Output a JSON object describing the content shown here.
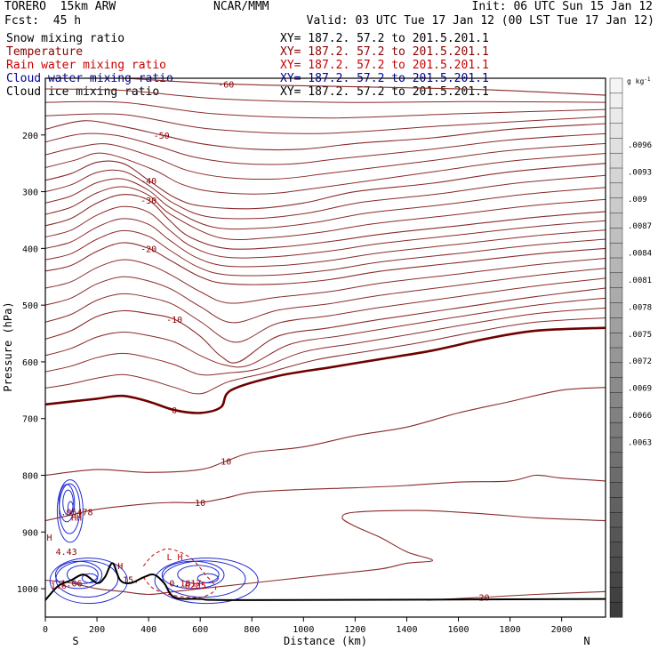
{
  "header": {
    "model": "TORERO  15km ARW",
    "forecast": "Fcst:  45 h",
    "center": "NCAR/MMM",
    "init": "Init: 06 UTC Sun 15 Jan 12",
    "valid": "Valid: 03 UTC Tue 17 Jan 12 (00 LST Tue 17 Jan 12)",
    "fields": [
      {
        "name": "Snow mixing ratio",
        "color": "#000000",
        "xy": "XY= 187.2. 57.2 to 201.5.201.1"
      },
      {
        "name": "Temperature",
        "color": "#8b0000",
        "xy": "XY= 187.2. 57.2 to 201.5.201.1"
      },
      {
        "name": "Rain water mixing ratio",
        "color": "#cc0000",
        "xy": "XY= 187.2. 57.2 to 201.5.201.1"
      },
      {
        "name": "Cloud water mixing ratio",
        "color": "#00009c",
        "xy": "XY= 187.2. 57.2 to 201.5.201.1"
      },
      {
        "name": "Cloud ice mixing ratio",
        "color": "#000000",
        "xy": "XY= 187.2. 57.2 to 201.5.201.1"
      }
    ]
  },
  "chart_data": {
    "type": "line",
    "title": "",
    "xlabel": "Distance (km)",
    "ylabel": "Pressure (hPa)",
    "xlim": [
      0,
      2170
    ],
    "ylim": [
      1050,
      100
    ],
    "x_ticks": [
      0,
      200,
      400,
      600,
      800,
      1000,
      1200,
      1400,
      1600,
      1800,
      2000
    ],
    "y_ticks": [
      200,
      300,
      400,
      500,
      600,
      700,
      800,
      900,
      1000
    ],
    "direction_labels": {
      "left": "S",
      "right": "N"
    },
    "colorbar": {
      "unit": "g kg",
      "unit_exp": "-1",
      "ticks": [
        ".0096",
        ".0093",
        ".009",
        ".0087",
        ".0084",
        ".0081",
        ".0078",
        ".0075",
        ".0072",
        ".0069",
        ".0066",
        ".0063"
      ]
    },
    "temperature_contours": [
      {
        "level": -60,
        "points": [
          [
            0,
            95
          ],
          [
            300,
            100
          ],
          [
            700,
            110
          ],
          [
            1200,
            115
          ],
          [
            1700,
            120
          ],
          [
            2170,
            130
          ]
        ]
      },
      {
        "level": -50,
        "points": [
          [
            0,
            190
          ],
          [
            150,
            175
          ],
          [
            300,
            185
          ],
          [
            450,
            200
          ],
          [
            600,
            215
          ],
          [
            800,
            225
          ],
          [
            1000,
            225
          ],
          [
            1200,
            215
          ],
          [
            1500,
            205
          ],
          [
            1800,
            190
          ],
          [
            2170,
            180
          ]
        ]
      },
      {
        "level": -40,
        "points": [
          [
            0,
            280
          ],
          [
            100,
            268
          ],
          [
            200,
            248
          ],
          [
            300,
            250
          ],
          [
            400,
            280
          ],
          [
            500,
            310
          ],
          [
            600,
            325
          ],
          [
            800,
            330
          ],
          [
            1000,
            320
          ],
          [
            1200,
            300
          ],
          [
            1500,
            285
          ],
          [
            1800,
            265
          ],
          [
            2170,
            250
          ]
        ]
      },
      {
        "level": -30,
        "points": [
          [
            0,
            360
          ],
          [
            100,
            347
          ],
          [
            200,
            320
          ],
          [
            300,
            305
          ],
          [
            400,
            315
          ],
          [
            480,
            350
          ],
          [
            560,
            380
          ],
          [
            700,
            400
          ],
          [
            900,
            398
          ],
          [
            1100,
            388
          ],
          [
            1300,
            375
          ],
          [
            1600,
            360
          ],
          [
            1900,
            345
          ],
          [
            2170,
            335
          ]
        ]
      },
      {
        "level": -20,
        "points": [
          [
            0,
            440
          ],
          [
            100,
            430
          ],
          [
            200,
            405
          ],
          [
            300,
            390
          ],
          [
            400,
            400
          ],
          [
            480,
            420
          ],
          [
            600,
            450
          ],
          [
            700,
            462
          ],
          [
            900,
            463
          ],
          [
            1100,
            455
          ],
          [
            1300,
            440
          ],
          [
            1600,
            425
          ],
          [
            1900,
            410
          ],
          [
            2170,
            400
          ]
        ]
      },
      {
        "level": -10,
        "points": [
          [
            0,
            560
          ],
          [
            100,
            545
          ],
          [
            200,
            520
          ],
          [
            300,
            510
          ],
          [
            400,
            515
          ],
          [
            500,
            525
          ],
          [
            600,
            555
          ],
          [
            680,
            590
          ],
          [
            750,
            600
          ],
          [
            900,
            555
          ],
          [
            1100,
            540
          ],
          [
            1300,
            525
          ],
          [
            1600,
            505
          ],
          [
            1900,
            485
          ],
          [
            2170,
            470
          ]
        ]
      },
      {
        "level": 0,
        "points": [
          [
            0,
            675
          ],
          [
            100,
            670
          ],
          [
            200,
            665
          ],
          [
            300,
            660
          ],
          [
            400,
            670
          ],
          [
            500,
            685
          ],
          [
            600,
            690
          ],
          [
            680,
            680
          ],
          [
            720,
            650
          ],
          [
            900,
            625
          ],
          [
            1100,
            610
          ],
          [
            1300,
            595
          ],
          [
            1500,
            580
          ],
          [
            1700,
            560
          ],
          [
            1900,
            545
          ],
          [
            2170,
            540
          ]
        ]
      },
      {
        "level": 10,
        "points": [
          [
            0,
            800
          ],
          [
            200,
            790
          ],
          [
            400,
            795
          ],
          [
            600,
            790
          ],
          [
            700,
            775
          ],
          [
            800,
            760
          ],
          [
            1000,
            750
          ],
          [
            1200,
            730
          ],
          [
            1400,
            715
          ],
          [
            1600,
            690
          ],
          [
            1800,
            670
          ],
          [
            2000,
            650
          ],
          [
            2170,
            645
          ]
        ]
      },
      {
        "level": 10,
        "points": [
          [
            0,
            880
          ],
          [
            100,
            870
          ],
          [
            200,
            860
          ],
          [
            400,
            850
          ],
          [
            500,
            848
          ],
          [
            600,
            848
          ],
          [
            700,
            840
          ],
          [
            800,
            830
          ],
          [
            1000,
            825
          ],
          [
            1200,
            822
          ],
          [
            1400,
            818
          ],
          [
            1600,
            812
          ],
          [
            1800,
            810
          ],
          [
            1900,
            800
          ],
          [
            2000,
            805
          ],
          [
            2170,
            810
          ]
        ]
      },
      {
        "level": 20,
        "points": [
          [
            1480,
            1020
          ],
          [
            1700,
            1015
          ],
          [
            1900,
            1010
          ],
          [
            2170,
            1005
          ]
        ]
      }
    ],
    "warm_loop_points": [
      [
        2170,
        880
      ],
      [
        1900,
        875
      ],
      [
        1700,
        868
      ],
      [
        1450,
        862
      ],
      [
        1200,
        865
      ],
      [
        1150,
        875
      ],
      [
        1200,
        890
      ],
      [
        1300,
        910
      ],
      [
        1400,
        935
      ],
      [
        1500,
        950
      ],
      [
        1400,
        955
      ],
      [
        1300,
        965
      ],
      [
        1100,
        975
      ],
      [
        900,
        985
      ],
      [
        700,
        995
      ],
      [
        600,
        1000
      ],
      [
        500,
        1005
      ],
      [
        400,
        1010
      ],
      [
        300,
        1005
      ],
      [
        200,
        1000
      ],
      [
        100,
        990
      ],
      [
        0,
        985
      ]
    ],
    "cloud_blobs": [
      {
        "x": [
          40,
          140
        ],
        "p": [
          800,
          910
        ],
        "label": ".05478"
      },
      {
        "x": [
          0,
          300
        ],
        "p": [
          940,
          1020
        ],
        "label": "1.06"
      },
      {
        "x": [
          400,
          800
        ],
        "p": [
          940,
          1020
        ],
        "label": "0.1817"
      }
    ],
    "annotations": [
      {
        "text": "HH",
        "x": 100,
        "p": 880,
        "color": "#8b0000"
      },
      {
        "text": "H",
        "x": 5,
        "p": 915,
        "color": "#8b0000"
      },
      {
        "text": "4.43",
        "x": 40,
        "p": 940,
        "color": "#8b0000"
      },
      {
        "text": "15.",
        "x": 300,
        "p": 990,
        "color": "#8b0000"
      },
      {
        "text": "H",
        "x": 280,
        "p": 965,
        "color": "#8b0000"
      },
      {
        "text": "0205",
        "x": 540,
        "p": 1000,
        "color": "#cc0000"
      },
      {
        "text": "L H",
        "x": 470,
        "p": 950,
        "color": "#cc0000"
      },
      {
        "text": "1.6",
        "x": 20,
        "p": 1000,
        "color": "#cc0000"
      }
    ],
    "terrain_points": [
      [
        0,
        1020
      ],
      [
        50,
        995
      ],
      [
        100,
        985
      ],
      [
        150,
        975
      ],
      [
        200,
        990
      ],
      [
        230,
        980
      ],
      [
        260,
        955
      ],
      [
        290,
        985
      ],
      [
        330,
        990
      ],
      [
        380,
        980
      ],
      [
        420,
        975
      ],
      [
        460,
        990
      ],
      [
        500,
        1015
      ],
      [
        600,
        1018
      ],
      [
        800,
        1020
      ],
      [
        2170,
        1018
      ]
    ]
  }
}
